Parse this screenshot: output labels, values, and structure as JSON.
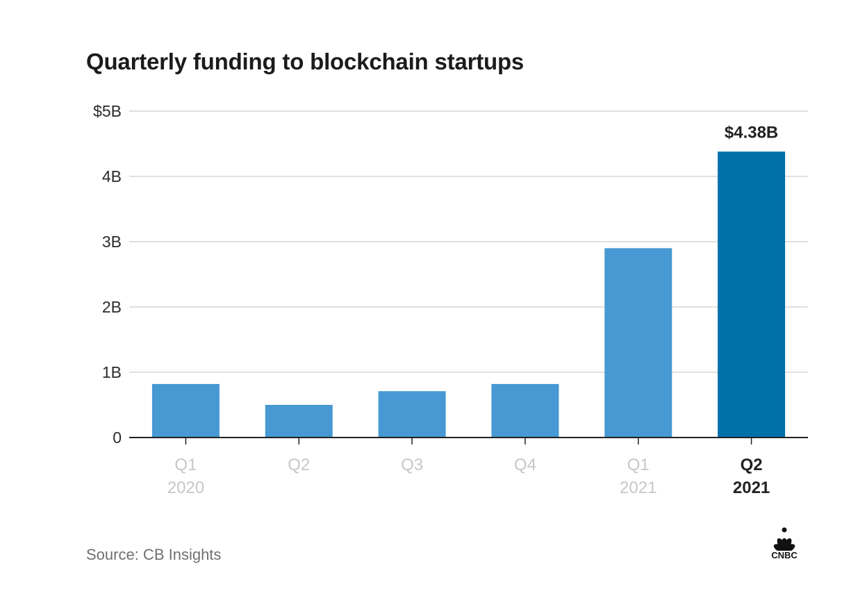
{
  "chart_data": {
    "type": "bar",
    "title": "Quarterly funding to blockchain startups",
    "categories": [
      [
        "Q1",
        "2020"
      ],
      [
        "Q2",
        ""
      ],
      [
        "Q3",
        ""
      ],
      [
        "Q4",
        ""
      ],
      [
        "Q1",
        "2021"
      ],
      [
        "Q2",
        "2021"
      ]
    ],
    "values": [
      0.82,
      0.5,
      0.71,
      0.82,
      2.9,
      4.38
    ],
    "unit": "billions USD",
    "ylim": [
      0,
      5
    ],
    "yticks": [
      {
        "value": 0,
        "label": "0"
      },
      {
        "value": 1,
        "label": "1B"
      },
      {
        "value": 2,
        "label": "2B"
      },
      {
        "value": 3,
        "label": "3B"
      },
      {
        "value": 4,
        "label": "4B"
      },
      {
        "value": 5,
        "label": "$5B"
      }
    ],
    "highlight_index": 5,
    "highlight_label": "$4.38B",
    "grid": true,
    "colors": {
      "bar": "#4699d3",
      "highlight": "#0070a9",
      "grid": "#d6d6d6",
      "axis": "#222222",
      "tick_text": "#2b2b2b",
      "category_text": "#c7c7c7",
      "highlight_text": "#222222"
    }
  },
  "source": "Source: CB Insights",
  "brand": {
    "name": "CNBC",
    "icon": "nbc-peacock-icon"
  }
}
